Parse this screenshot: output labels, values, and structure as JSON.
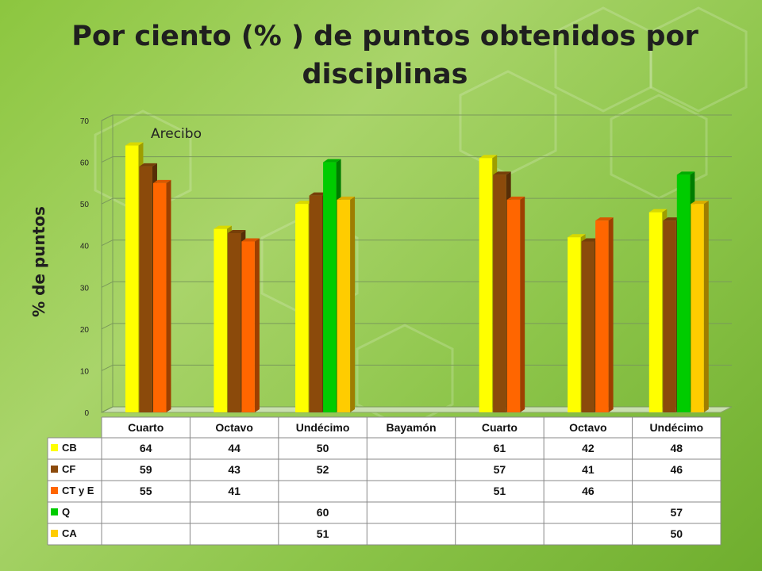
{
  "title": "Por ciento (% ) de puntos obtenidos por disciplinas",
  "colors": {
    "CB": "#ffff00",
    "CF": "#8b4a0b",
    "CT y E": "#ff6600",
    "Q": "#00cc00",
    "CA": "#ffcc00"
  },
  "chart_data": {
    "type": "bar",
    "title": "Por ciento (% ) de puntos obtenidos por disciplinas",
    "ylabel": "% de puntos",
    "ylim": [
      0,
      70
    ],
    "yticks": [
      0,
      10,
      20,
      30,
      40,
      50,
      60,
      70
    ],
    "annotation": "Arecibo",
    "categories": [
      "Cuarto",
      "Octavo",
      "Undécimo",
      "Bayamón",
      "Cuarto",
      "Octavo",
      "Undécimo"
    ],
    "series": [
      {
        "name": "CB",
        "values": [
          64,
          44,
          50,
          null,
          61,
          42,
          48
        ]
      },
      {
        "name": "CF",
        "values": [
          59,
          43,
          52,
          null,
          57,
          41,
          46
        ]
      },
      {
        "name": "CT y E",
        "values": [
          55,
          41,
          null,
          null,
          51,
          46,
          null
        ]
      },
      {
        "name": "Q",
        "values": [
          null,
          null,
          60,
          null,
          null,
          null,
          57
        ]
      },
      {
        "name": "CA",
        "values": [
          null,
          null,
          51,
          null,
          null,
          null,
          50
        ]
      }
    ],
    "grid": true,
    "legend": "data-table"
  }
}
